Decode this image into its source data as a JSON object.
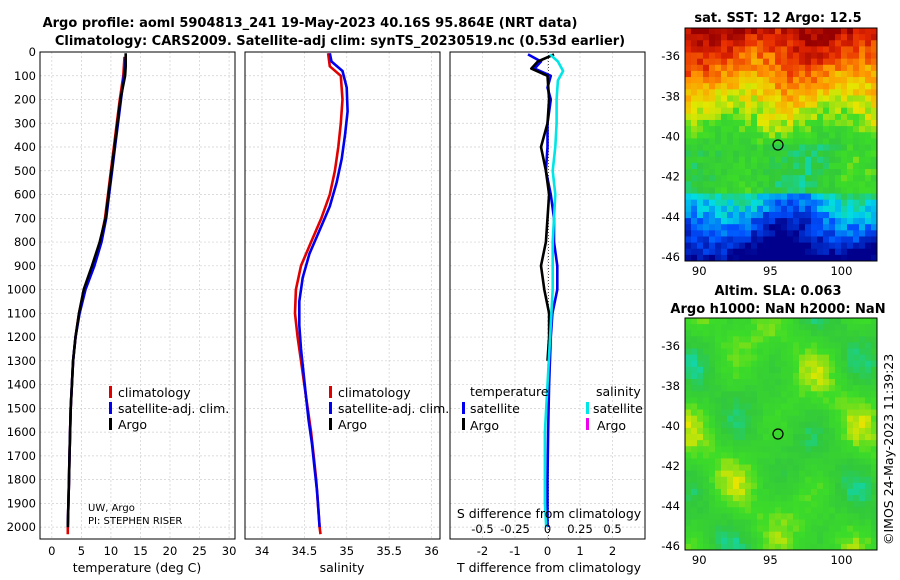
{
  "title_line1": "Argo profile: aoml 5904813_241 19-May-2023 40.16S 95.864E (NRT data)",
  "title_line2": "Climatology: CARS2009. Satellite-adj clim: synTS_20230519.nc (0.53d earlier)",
  "credits": {
    "line1": "UW, Argo",
    "line2": "PI: STEPHEN RISER"
  },
  "timestamp": "©IMOS 24-May-2023 11:39:23",
  "colors": {
    "climatology": "#e00000",
    "satellite": "#0000ee",
    "argo": "#000000",
    "sat_sal": "#00e5e5",
    "argo_sal": "#ee00ee",
    "ref_line": "#555555"
  },
  "chart_data": [
    {
      "type": "line",
      "id": "temperature",
      "xlabel": "temperature (deg C)",
      "ylabel": "",
      "xlim": [
        -2,
        31
      ],
      "ylim": [
        2050,
        0
      ],
      "xticks": [
        0,
        5,
        10,
        15,
        20,
        25,
        30
      ],
      "yticks": [
        0,
        100,
        200,
        300,
        400,
        500,
        600,
        700,
        800,
        900,
        1000,
        1100,
        1200,
        1300,
        1400,
        1500,
        1600,
        1700,
        1800,
        1900,
        2000
      ],
      "grid": true,
      "legend": {
        "position": "lower-right",
        "entries": [
          "climatology",
          "satellite-adj. clim.",
          "Argo"
        ]
      },
      "series": [
        {
          "name": "climatology",
          "color": "#e00000",
          "points": [
            [
              12.3,
              20
            ],
            [
              12.2,
              60
            ],
            [
              12.1,
              100
            ],
            [
              11.5,
              200
            ],
            [
              11.0,
              300
            ],
            [
              10.5,
              400
            ],
            [
              10.0,
              500
            ],
            [
              9.5,
              600
            ],
            [
              9.0,
              700
            ],
            [
              8.2,
              800
            ],
            [
              7.0,
              900
            ],
            [
              5.5,
              1000
            ],
            [
              4.6,
              1100
            ],
            [
              4.0,
              1200
            ],
            [
              3.6,
              1300
            ],
            [
              3.4,
              1400
            ],
            [
              3.2,
              1500
            ],
            [
              3.1,
              1600
            ],
            [
              3.0,
              1700
            ],
            [
              2.9,
              1800
            ],
            [
              2.8,
              1900
            ],
            [
              2.7,
              2000
            ],
            [
              2.7,
              2030
            ]
          ]
        },
        {
          "name": "satellite-adj. clim.",
          "color": "#0000ee",
          "points": [
            [
              12.5,
              20
            ],
            [
              12.4,
              60
            ],
            [
              12.2,
              100
            ],
            [
              11.7,
              200
            ],
            [
              11.2,
              300
            ],
            [
              10.7,
              400
            ],
            [
              10.2,
              500
            ],
            [
              9.7,
              600
            ],
            [
              9.2,
              700
            ],
            [
              8.4,
              800
            ],
            [
              7.2,
              900
            ],
            [
              5.7,
              1000
            ],
            [
              4.7,
              1100
            ],
            [
              4.0,
              1200
            ],
            [
              3.6,
              1300
            ],
            [
              3.4,
              1400
            ],
            [
              3.2,
              1500
            ],
            [
              3.1,
              1600
            ],
            [
              3.0,
              1700
            ],
            [
              2.9,
              1800
            ],
            [
              2.8,
              1900
            ],
            [
              2.7,
              2000
            ]
          ]
        },
        {
          "name": "Argo",
          "color": "#000000",
          "points": [
            [
              12.5,
              5
            ],
            [
              12.5,
              60
            ],
            [
              12.4,
              100
            ],
            [
              11.6,
              200
            ],
            [
              11.1,
              300
            ],
            [
              10.6,
              400
            ],
            [
              10.1,
              500
            ],
            [
              9.6,
              600
            ],
            [
              9.1,
              700
            ],
            [
              8.1,
              800
            ],
            [
              6.8,
              900
            ],
            [
              5.4,
              1000
            ],
            [
              4.6,
              1100
            ],
            [
              4.0,
              1200
            ],
            [
              3.6,
              1300
            ],
            [
              3.4,
              1400
            ],
            [
              3.2,
              1500
            ],
            [
              3.1,
              1600
            ],
            [
              3.0,
              1700
            ],
            [
              2.9,
              1800
            ],
            [
              2.8,
              1900
            ],
            [
              2.7,
              2000
            ]
          ]
        }
      ]
    },
    {
      "type": "line",
      "id": "salinity",
      "xlabel": "salinity",
      "xlim": [
        33.8,
        36.1
      ],
      "ylim": [
        2050,
        0
      ],
      "xticks": [
        34,
        34.5,
        35,
        35.5,
        36
      ],
      "xticklabels": [
        "34",
        "34.5",
        "35",
        "35.5",
        "36"
      ],
      "grid": true,
      "legend": {
        "position": "lower-right",
        "entries": [
          "climatology",
          "satellite-adj. clim.",
          "Argo"
        ]
      },
      "series": [
        {
          "name": "climatology",
          "color": "#e00000",
          "points": [
            [
              34.78,
              5
            ],
            [
              34.8,
              60
            ],
            [
              34.93,
              100
            ],
            [
              34.95,
              200
            ],
            [
              34.93,
              300
            ],
            [
              34.9,
              400
            ],
            [
              34.86,
              500
            ],
            [
              34.8,
              600
            ],
            [
              34.7,
              700
            ],
            [
              34.58,
              800
            ],
            [
              34.46,
              900
            ],
            [
              34.4,
              1000
            ],
            [
              34.39,
              1100
            ],
            [
              34.42,
              1200
            ],
            [
              34.46,
              1300
            ],
            [
              34.5,
              1400
            ],
            [
              34.54,
              1500
            ],
            [
              34.58,
              1600
            ],
            [
              34.61,
              1700
            ],
            [
              34.64,
              1800
            ],
            [
              34.66,
              1900
            ],
            [
              34.68,
              2000
            ],
            [
              34.69,
              2030
            ]
          ]
        },
        {
          "name": "satellite-adj. clim.",
          "color": "#0000ee",
          "points": [
            [
              34.8,
              5
            ],
            [
              34.82,
              40
            ],
            [
              34.95,
              80
            ],
            [
              35.0,
              150
            ],
            [
              35.01,
              250
            ],
            [
              34.98,
              350
            ],
            [
              34.94,
              450
            ],
            [
              34.88,
              550
            ],
            [
              34.8,
              650
            ],
            [
              34.68,
              750
            ],
            [
              34.56,
              850
            ],
            [
              34.48,
              950
            ],
            [
              34.44,
              1050
            ],
            [
              34.44,
              1150
            ],
            [
              34.46,
              1250
            ],
            [
              34.49,
              1350
            ],
            [
              34.52,
              1450
            ],
            [
              34.55,
              1550
            ],
            [
              34.59,
              1650
            ],
            [
              34.62,
              1750
            ],
            [
              34.65,
              1850
            ],
            [
              34.67,
              1950
            ],
            [
              34.68,
              2000
            ]
          ]
        },
        {
          "name": "Argo",
          "color": "#000000",
          "points": []
        }
      ]
    },
    {
      "type": "line",
      "id": "difference",
      "xlabel": "T difference from climatology",
      "x2label": "S difference from climatology",
      "xlim": [
        -3,
        3
      ],
      "ylim": [
        2050,
        0
      ],
      "xticks": [
        -2,
        -1,
        0,
        1,
        2
      ],
      "xticklabels": [
        "-2",
        "-1",
        "0",
        "1",
        "2"
      ],
      "x2ticks": [
        -0.5,
        -0.25,
        0,
        0.25,
        0.5
      ],
      "x2ticklabels": [
        "-0.5",
        "-0.25",
        "0",
        "0.25",
        "0.5"
      ],
      "x2lim": [
        -0.75,
        0.75
      ],
      "grid": true,
      "legend": {
        "position": "lower-center",
        "groups": [
          {
            "title": "temperature",
            "entries": [
              "satellite",
              "Argo"
            ]
          },
          {
            "title": "salinity",
            "entries": [
              "satellite",
              "Argo"
            ]
          }
        ]
      },
      "series": [
        {
          "name": "temperature satellite",
          "color": "#0000ee",
          "points": [
            [
              -0.6,
              10
            ],
            [
              -0.2,
              40
            ],
            [
              -0.4,
              70
            ],
            [
              0.1,
              100
            ],
            [
              0.0,
              150
            ],
            [
              0.1,
              200
            ],
            [
              0.0,
              300
            ],
            [
              0.0,
              400
            ],
            [
              -0.05,
              500
            ],
            [
              0.1,
              600
            ],
            [
              0.2,
              700
            ],
            [
              0.2,
              800
            ],
            [
              0.3,
              900
            ],
            [
              0.3,
              1000
            ],
            [
              0.15,
              1100
            ],
            [
              0.1,
              1200
            ],
            [
              0.05,
              1400
            ],
            [
              0.02,
              1600
            ],
            [
              0.0,
              1800
            ],
            [
              0.0,
              2000
            ]
          ]
        },
        {
          "name": "temperature Argo",
          "color": "#000000",
          "points": [
            [
              0.2,
              10
            ],
            [
              -0.3,
              40
            ],
            [
              -0.5,
              70
            ],
            [
              0.0,
              100
            ],
            [
              0.05,
              200
            ],
            [
              0.0,
              300
            ],
            [
              -0.2,
              400
            ],
            [
              -0.05,
              500
            ],
            [
              0.05,
              600
            ],
            [
              0.0,
              700
            ],
            [
              -0.05,
              800
            ],
            [
              -0.2,
              900
            ],
            [
              -0.1,
              1000
            ],
            [
              0.05,
              1100
            ],
            [
              0.05,
              1200
            ],
            [
              0.0,
              1300
            ]
          ]
        },
        {
          "name": "salinity satellite",
          "color": "#00e5e5",
          "points": [
            [
              0.02,
              10
            ],
            [
              0.08,
              40
            ],
            [
              0.12,
              80
            ],
            [
              0.08,
              120
            ],
            [
              0.07,
              200
            ],
            [
              0.07,
              300
            ],
            [
              0.06,
              400
            ],
            [
              0.04,
              500
            ],
            [
              0.06,
              600
            ],
            [
              0.05,
              700
            ],
            [
              0.04,
              800
            ],
            [
              0.04,
              900
            ],
            [
              0.04,
              1000
            ],
            [
              0.03,
              1100
            ],
            [
              0.02,
              1200
            ],
            [
              0.01,
              1300
            ],
            [
              0.0,
              1400
            ],
            [
              -0.01,
              1500
            ],
            [
              -0.02,
              1600
            ],
            [
              -0.02,
              1700
            ],
            [
              -0.02,
              1800
            ],
            [
              -0.02,
              1900
            ],
            [
              -0.01,
              2000
            ]
          ]
        },
        {
          "name": "salinity Argo",
          "color": "#ee00ee",
          "points": []
        }
      ]
    },
    {
      "type": "heatmap",
      "id": "sst-map",
      "title": "sat. SST: 12 Argo: 12.5",
      "xlim": [
        89,
        102.5
      ],
      "ylim": [
        -46.2,
        -34.6
      ],
      "xticks": [
        90,
        95,
        100
      ],
      "xticklabels": [
        "90",
        "95",
        "100"
      ],
      "yticks": [
        -36,
        -38,
        -40,
        -42,
        -44,
        -46
      ],
      "yticklabels": [
        "-36",
        "-38",
        "-40",
        "-42",
        "-44",
        "-46"
      ],
      "marker": {
        "lon": 95.864,
        "lat": -40.16
      }
    },
    {
      "type": "heatmap",
      "id": "sla-map",
      "title": "Altim. SLA: 0.063",
      "subtitle": "Argo h1000: NaN h2000: NaN",
      "xlim": [
        89,
        102.5
      ],
      "ylim": [
        -46.2,
        -34.6
      ],
      "xticks": [
        90,
        95,
        100
      ],
      "xticklabels": [
        "90",
        "95",
        "100"
      ],
      "yticks": [
        -36,
        -38,
        -40,
        -42,
        -44,
        -46
      ],
      "yticklabels": [
        "-36",
        "-38",
        "-40",
        "-42",
        "-44",
        "-46"
      ],
      "marker": {
        "lon": 95.864,
        "lat": -40.16
      }
    }
  ]
}
